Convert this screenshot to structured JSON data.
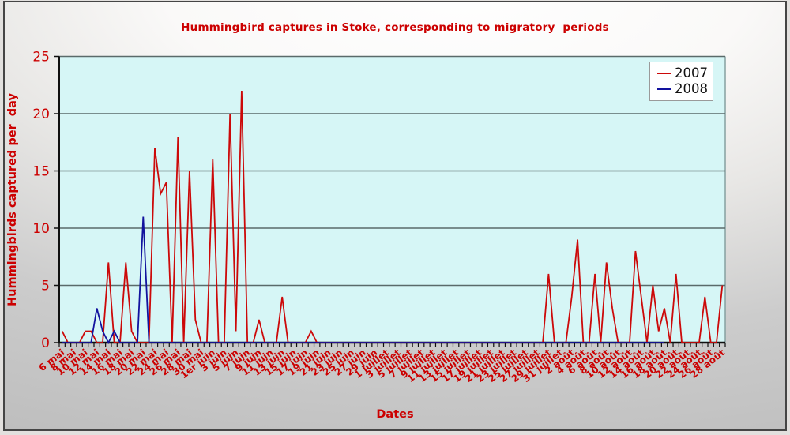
{
  "chart_data": {
    "type": "line",
    "title": "Hummingbird captures in Stoke, corresponding to migratory  periods",
    "xlabel": "Dates",
    "ylabel": "Hummingbirds captured per  day",
    "ylim": [
      0,
      25
    ],
    "y_ticks": [
      0,
      5,
      10,
      15,
      20,
      25
    ],
    "grid": true,
    "legend_position": "top-right",
    "plot_bg_color": "#d6f6f6",
    "grid_color": "#5a6a6a",
    "axis_color": "#101010",
    "label_color": "#cc0000",
    "x_label_step": 2,
    "x_labels": [
      "6 mai",
      "8 mai",
      "10 mai",
      "12 mai",
      "14 mai",
      "16 mai",
      "18 mai",
      "20 mai",
      "22 mai",
      "24 mai",
      "26 mai",
      "28 mai",
      "30 mai",
      "1er juin",
      "3 juin",
      "5 juin",
      "7 juin",
      "9 juin",
      "11 juin",
      "13 juin",
      "15 juin",
      "17 juin",
      "19 juin",
      "21 juin",
      "23 juin",
      "25 juin",
      "27 juin",
      "29 juin",
      "1 juillet",
      "3 juillet",
      "5 juillet",
      "7 juillet",
      "9 juillet",
      "11 juillet",
      "13 juillet",
      "15 juillet",
      "17 juillet",
      "19 juillet",
      "21 juillet",
      "23 juillet",
      "25 juillet",
      "27 juillet",
      "29 juillet",
      "31 juillet",
      "2 août",
      "4 août",
      "6 août",
      "8 août",
      "10 août",
      "12 août",
      "14 août",
      "16 août",
      "18 août",
      "20 août",
      "22 août",
      "24 août",
      "26 août",
      "28 août"
    ],
    "series": [
      {
        "name": "2007",
        "color": "#cc0909",
        "values": [
          1,
          0,
          0,
          0,
          1,
          1,
          0,
          0,
          7,
          0,
          0,
          7,
          1,
          0,
          0,
          0,
          17,
          13,
          14,
          0,
          18,
          0,
          15,
          2,
          0,
          0,
          16,
          0,
          0,
          20,
          1,
          22,
          0,
          0,
          2,
          0,
          0,
          0,
          4,
          0,
          0,
          0,
          0,
          1,
          0,
          0,
          0,
          0,
          0,
          0,
          0,
          0,
          0,
          0,
          0,
          0,
          0,
          0,
          0,
          0,
          0,
          0,
          0,
          0,
          0,
          0,
          0,
          0,
          0,
          0,
          0,
          0,
          0,
          0,
          0,
          0,
          0,
          0,
          0,
          0,
          0,
          0,
          0,
          0,
          6,
          0,
          0,
          0,
          4,
          9,
          0,
          0,
          6,
          0,
          7,
          3,
          0,
          0,
          0,
          8,
          4,
          0,
          5,
          1,
          3,
          0,
          6,
          0,
          0,
          0,
          0,
          4,
          0,
          0,
          5
        ]
      },
      {
        "name": "2008",
        "color": "#12129e",
        "values": [
          0,
          0,
          0,
          0,
          0,
          0,
          3,
          1,
          0,
          1,
          0,
          0,
          0,
          0,
          11,
          0,
          0,
          0,
          0,
          0,
          0,
          0,
          0,
          0,
          0,
          0,
          0,
          0,
          0,
          0,
          0,
          0,
          0,
          0,
          0,
          0,
          0,
          0,
          0,
          0,
          0,
          0,
          0,
          0,
          0,
          0,
          0,
          0,
          0,
          0,
          0,
          0,
          0,
          0,
          0,
          0,
          0,
          0,
          0,
          0,
          0,
          0,
          0,
          0,
          0,
          0,
          0,
          0,
          0,
          0,
          0,
          0,
          0,
          0,
          0,
          0,
          0,
          0,
          0,
          0,
          0,
          0,
          0,
          0,
          0,
          0,
          0,
          0,
          0,
          0,
          0,
          0,
          0,
          0,
          0,
          0,
          0,
          0,
          0,
          0,
          0,
          0,
          0,
          0,
          0
        ]
      }
    ]
  }
}
